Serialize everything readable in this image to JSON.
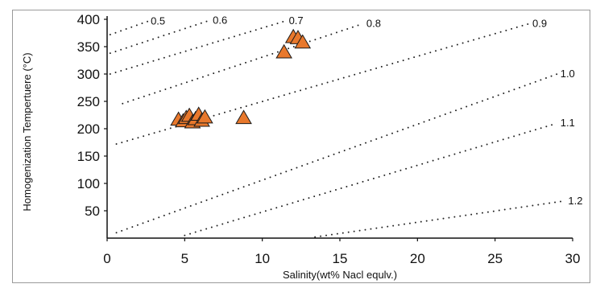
{
  "chart_data": {
    "type": "scatter",
    "title": "",
    "xlabel": "Salinity(wt% Nacl equlv.)",
    "ylabel": "Homogenization Tempertuere (°C)",
    "xlim": [
      0,
      30
    ],
    "ylim": [
      0,
      400
    ],
    "x_ticks": [
      "0",
      "5",
      "10",
      "15",
      "20",
      "25",
      "30"
    ],
    "y_ticks": [
      "400",
      "350",
      "300",
      "250",
      "200",
      "150",
      "100",
      "50"
    ],
    "grid": false,
    "marker": "triangle",
    "marker_color": "#e8782c",
    "points": [
      {
        "x": 4.6,
        "y": 217
      },
      {
        "x": 4.9,
        "y": 214
      },
      {
        "x": 5.1,
        "y": 220
      },
      {
        "x": 5.3,
        "y": 224
      },
      {
        "x": 5.5,
        "y": 212
      },
      {
        "x": 5.7,
        "y": 218
      },
      {
        "x": 5.9,
        "y": 226
      },
      {
        "x": 6.1,
        "y": 215
      },
      {
        "x": 6.3,
        "y": 221
      },
      {
        "x": 8.8,
        "y": 220
      },
      {
        "x": 11.4,
        "y": 340
      },
      {
        "x": 12.0,
        "y": 368
      },
      {
        "x": 12.3,
        "y": 366
      },
      {
        "x": 12.6,
        "y": 358
      }
    ],
    "isochores": [
      {
        "label": "0.5",
        "from": [
          0.2,
          372
        ],
        "to": [
          2.6,
          396
        ]
      },
      {
        "label": "0.6",
        "from": [
          0.2,
          338
        ],
        "to": [
          6.6,
          398
        ]
      },
      {
        "label": "0.7",
        "from": [
          0.2,
          300
        ],
        "to": [
          11.5,
          397
        ]
      },
      {
        "label": "0.8",
        "from": [
          1.0,
          246
        ],
        "to": [
          16.5,
          392
        ]
      },
      {
        "label": "0.9",
        "from": [
          0.6,
          172
        ],
        "to": [
          27.2,
          392
        ]
      },
      {
        "label": "1.0",
        "from": [
          0.6,
          10
        ],
        "to": [
          29.0,
          300
        ]
      },
      {
        "label": "1.1",
        "from": [
          5.0,
          5
        ],
        "to": [
          29.0,
          210
        ]
      },
      {
        "label": "1.2",
        "from": [
          13.4,
          2
        ],
        "to": [
          29.5,
          68
        ]
      }
    ]
  }
}
